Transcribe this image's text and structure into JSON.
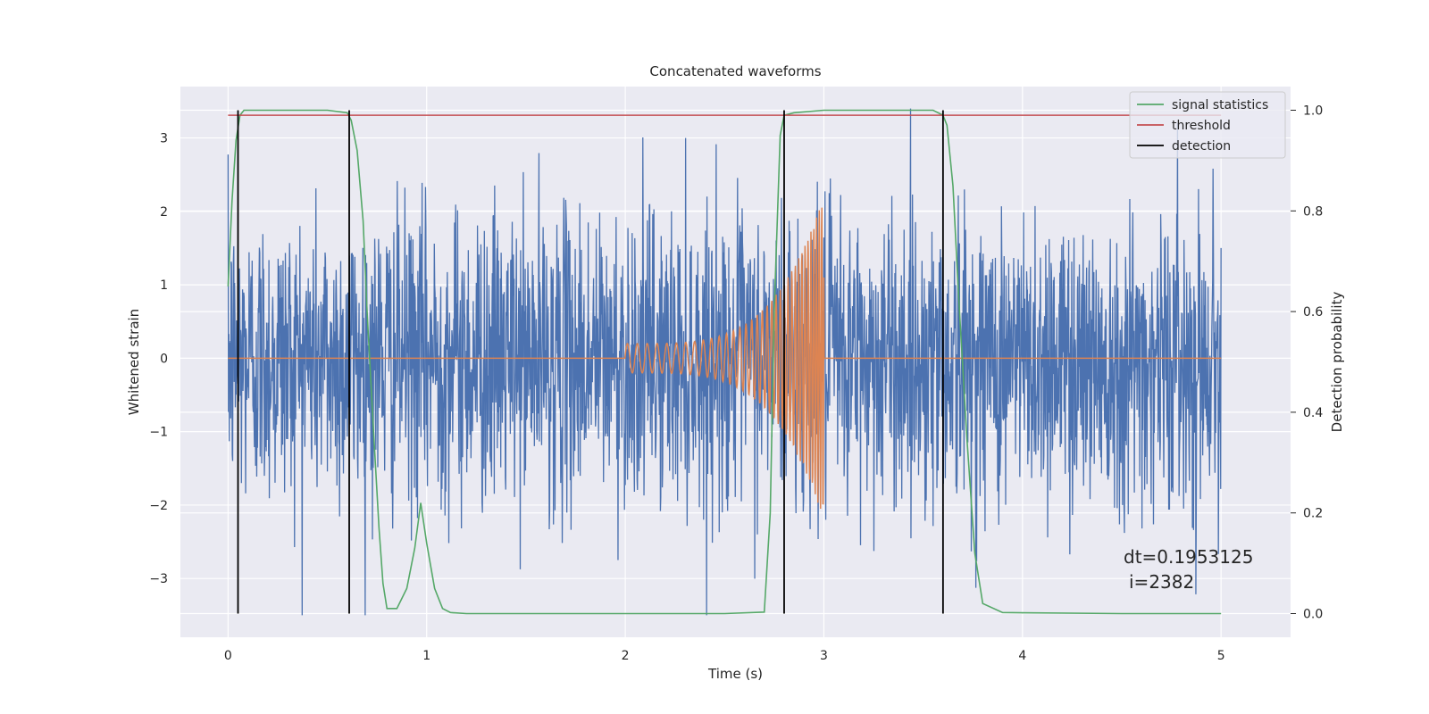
{
  "chart_data": {
    "type": "line",
    "title": "Concatenated waveforms",
    "xlabel": "Time (s)",
    "ylabel": "Whitened strain",
    "ylabel_right": "Detection probability",
    "xlim": [
      -0.24,
      5.35
    ],
    "ylim": [
      -3.8,
      3.7
    ],
    "ylim_right": [
      -0.047,
      1.047
    ],
    "xticks": [
      0,
      1,
      2,
      3,
      4,
      5
    ],
    "xtick_labels": [
      "0",
      "1",
      "2",
      "3",
      "4",
      "5"
    ],
    "yticks": [
      -3,
      -2,
      -1,
      0,
      1,
      2,
      3
    ],
    "ytick_labels": [
      "−3",
      "−2",
      "−1",
      "0",
      "1",
      "2",
      "3"
    ],
    "yticks_right": [
      0.0,
      0.2,
      0.4,
      0.6,
      0.8,
      1.0
    ],
    "ytick_right_labels": [
      "0.0",
      "0.2",
      "0.4",
      "0.6",
      "0.8",
      "1.0"
    ],
    "grid": true,
    "legend_position": "top-right",
    "colors": {
      "background": "#eaeaf2",
      "noise": "#4c72b0",
      "chirp": "#dd8452",
      "signal_statistics": "#55a868",
      "threshold": "#c44e52",
      "detection": "#000000"
    },
    "series": [
      {
        "name": "noise",
        "axis": "left",
        "description": "whitened strain noise sampled from 0 to 5 s, amplitude roughly ±3.3",
        "x_range": [
          0,
          5
        ],
        "sigma": 1.0
      },
      {
        "name": "chirp",
        "axis": "left",
        "description": "injected chirp waveform, zero before 2.0 s and after 3.0 s",
        "x_range": [
          2.0,
          3.0
        ],
        "amplitude_start": 0.2,
        "amplitude_end": 2.2
      }
    ],
    "signal_statistics": {
      "name": "signal statistics",
      "axis": "right",
      "x": [
        0,
        0.02,
        0.04,
        0.06,
        0.08,
        0.1,
        0.3,
        0.5,
        0.6,
        0.62,
        0.65,
        0.68,
        0.7,
        0.73,
        0.76,
        0.78,
        0.8,
        0.85,
        0.9,
        0.94,
        0.97,
        1.0,
        1.04,
        1.08,
        1.12,
        1.2,
        1.5,
        2.0,
        2.5,
        2.7,
        2.73,
        2.75,
        2.78,
        2.8,
        2.85,
        3.0,
        3.3,
        3.55,
        3.6,
        3.62,
        3.65,
        3.68,
        3.72,
        3.76,
        3.8,
        3.9,
        4.5,
        5.0
      ],
      "y": [
        0.65,
        0.82,
        0.94,
        0.99,
        1.0,
        1.0,
        1.0,
        1.0,
        0.995,
        0.98,
        0.92,
        0.78,
        0.6,
        0.38,
        0.17,
        0.06,
        0.01,
        0.01,
        0.05,
        0.13,
        0.22,
        0.14,
        0.05,
        0.01,
        0.002,
        0.0,
        0.0,
        0.0,
        0.0,
        0.003,
        0.2,
        0.6,
        0.95,
        0.99,
        0.995,
        1.0,
        1.0,
        1.0,
        0.99,
        0.97,
        0.85,
        0.62,
        0.35,
        0.12,
        0.02,
        0.002,
        0.0,
        0.0
      ]
    },
    "threshold": {
      "name": "threshold",
      "axis": "right",
      "value": 0.99,
      "x_range": [
        0,
        5
      ]
    },
    "detection": {
      "name": "detection",
      "axis": "right",
      "x": [
        0.05,
        0.61,
        2.8,
        3.6
      ],
      "y_range": [
        0.0,
        1.0
      ]
    },
    "legend": [
      "signal statistics",
      "threshold",
      "detection"
    ],
    "annotations": [
      "dt=0.1953125",
      "i=2382"
    ]
  }
}
